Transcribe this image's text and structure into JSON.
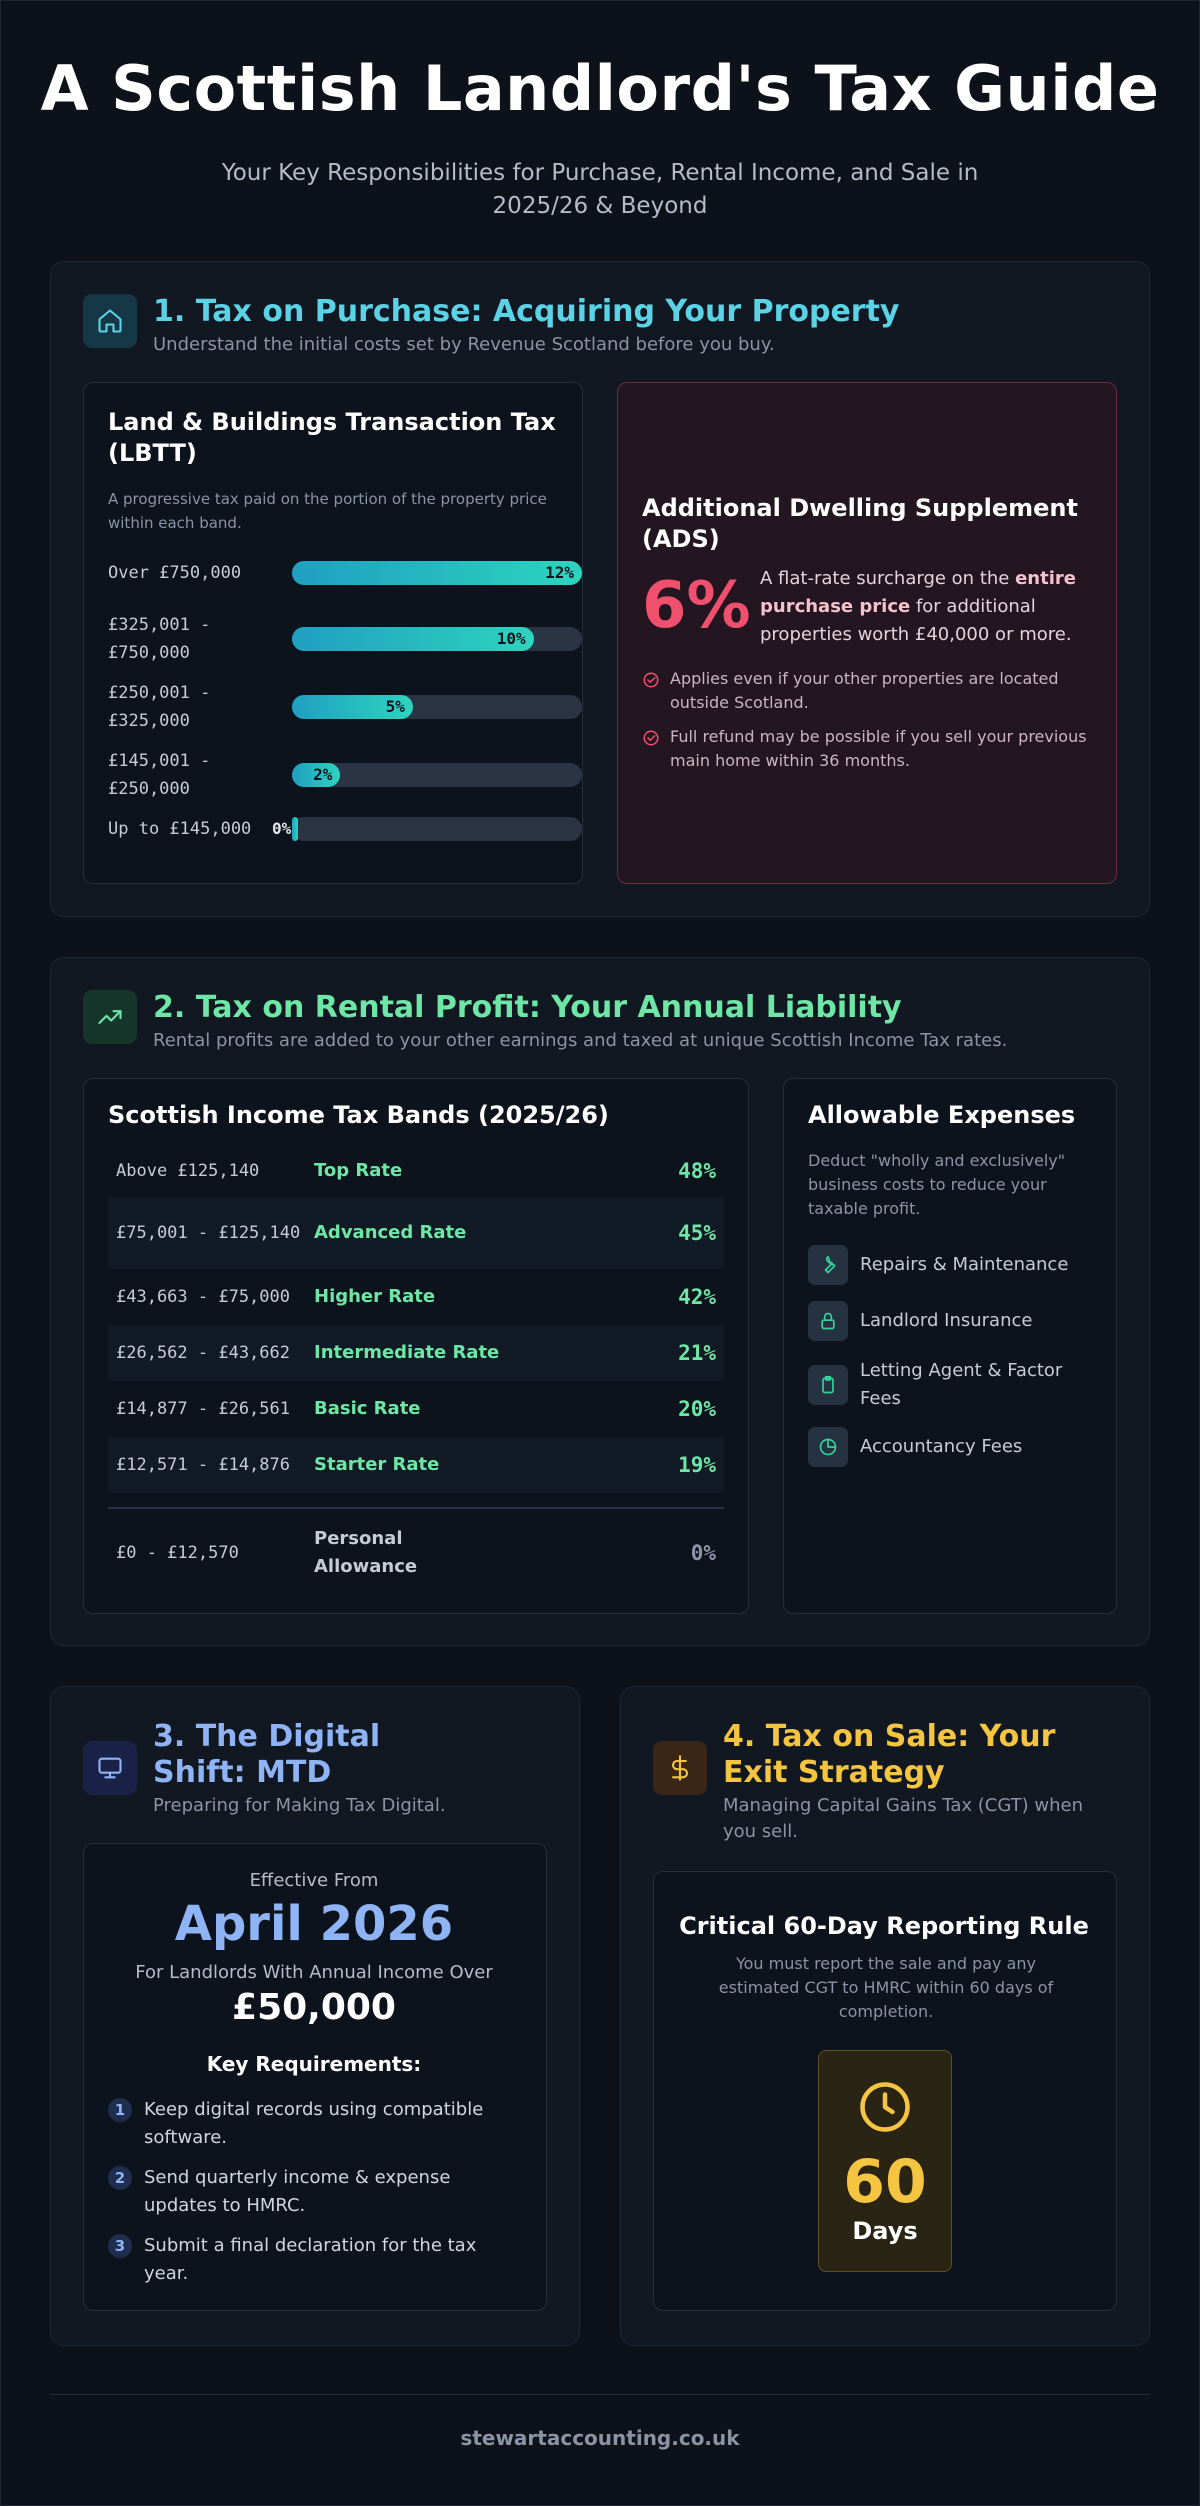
{
  "header": {
    "title": "A Scottish Landlord's Tax Guide",
    "subtitle": "Your Key Responsibilities for Purchase, Rental Income, and Sale in 2025/26 & Beyond"
  },
  "colors": {
    "purchase": "#5bd3e6",
    "rental": "#6ee7a6",
    "mtd": "#8fb4f5",
    "sale": "#f5c542",
    "ads": "#f0506e"
  },
  "purchase": {
    "icon": "home-icon",
    "title": "1. Tax on Purchase: Acquiring Your Property",
    "subtitle": "Understand the initial costs set by Revenue Scotland before you buy.",
    "lbtt": {
      "title": "Land & Buildings Transaction Tax (LBTT)",
      "description": "A progressive tax paid on the portion of the property price within each band.",
      "bands": [
        {
          "label": "Over £750,000",
          "pct": "12%",
          "value": 12
        },
        {
          "label": "£325,001 - £750,000",
          "pct": "10%",
          "value": 10
        },
        {
          "label": "£250,001 - £325,000",
          "pct": "5%",
          "value": 5
        },
        {
          "label": "£145,001 - £250,000",
          "pct": "2%",
          "value": 2
        },
        {
          "label": "Up to £145,000",
          "pct": "0%",
          "value": 0
        }
      ]
    },
    "ads": {
      "title": "Additional Dwelling Supplement (ADS)",
      "rate": "6%",
      "text_before": "A flat-rate surcharge on the ",
      "text_bold": "entire purchase price",
      "text_after": " for additional properties worth £40,000 or more.",
      "points": [
        "Applies even if your other properties are located outside Scotland.",
        "Full refund may be possible if you sell your previous main home within 36 months."
      ]
    }
  },
  "rental": {
    "icon": "trending-up-icon",
    "title": "2. Tax on Rental Profit: Your Annual Liability",
    "subtitle": "Rental profits are added to your other earnings and taxed at unique Scottish Income Tax rates.",
    "bands_title": "Scottish Income Tax Bands (2025/26)",
    "bands": [
      {
        "range": "Above £125,140",
        "name": "Top Rate",
        "rate": "48%"
      },
      {
        "range": "£75,001 - £125,140",
        "name": "Advanced Rate",
        "rate": "45%"
      },
      {
        "range": "£43,663 - £75,000",
        "name": "Higher Rate",
        "rate": "42%"
      },
      {
        "range": "£26,562 - £43,662",
        "name": "Intermediate Rate",
        "rate": "21%"
      },
      {
        "range": "£14,877 - £26,561",
        "name": "Basic Rate",
        "rate": "20%"
      },
      {
        "range": "£12,571 - £14,876",
        "name": "Starter Rate",
        "rate": "19%"
      },
      {
        "range": "£0 - £12,570",
        "name": "Personal Allowance",
        "rate": "0%"
      }
    ],
    "expenses": {
      "title": "Allowable Expenses",
      "description": "Deduct \"wholly and exclusively\" business costs to reduce your taxable profit.",
      "items": [
        {
          "icon": "wrench-icon",
          "label": "Repairs & Maintenance"
        },
        {
          "icon": "lock-icon",
          "label": "Landlord Insurance"
        },
        {
          "icon": "clipboard-icon",
          "label": "Letting Agent & Factor Fees"
        },
        {
          "icon": "pie-chart-icon",
          "label": "Accountancy Fees"
        }
      ]
    }
  },
  "mtd": {
    "icon": "monitor-icon",
    "title": "3. The Digital Shift: MTD",
    "subtitle": "Preparing for Making Tax Digital.",
    "effective_label": "Effective From",
    "effective_date": "April 2026",
    "threshold_label": "For Landlords With Annual Income Over",
    "threshold": "£50,000",
    "req_title": "Key Requirements:",
    "requirements": [
      {
        "num": "1",
        "text": "Keep digital records using compatible software."
      },
      {
        "num": "2",
        "text": "Send quarterly income & expense updates to HMRC."
      },
      {
        "num": "3",
        "text": "Submit a final declaration for the tax year."
      }
    ]
  },
  "sale": {
    "icon": "dollar-icon",
    "title": "4. Tax on Sale: Your Exit Strategy",
    "subtitle": "Managing Capital Gains Tax (CGT) when you sell.",
    "rule_title": "Critical 60-Day Reporting Rule",
    "rule_text": "You must report the sale and pay any estimated CGT to HMRC within 60 days of completion.",
    "days": "60",
    "days_label": "Days"
  },
  "footer": {
    "site": "stewartaccounting.co.uk"
  }
}
